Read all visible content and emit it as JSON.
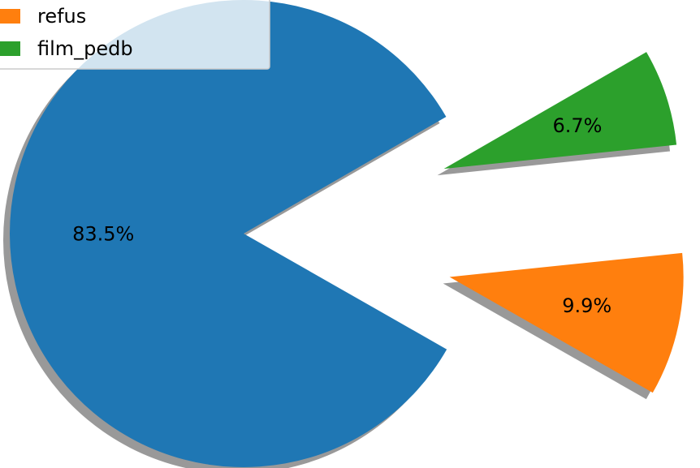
{
  "chart_data": {
    "type": "pie",
    "slices": [
      {
        "label": "",
        "value": 83.5,
        "pct_text": "83.5%",
        "color": "#1f77b4"
      },
      {
        "label": "refus",
        "value": 9.9,
        "pct_text": "9.9%",
        "color": "#ff7f0e"
      },
      {
        "label": "film_pedb",
        "value": 6.7,
        "pct_text": "6.7%",
        "color": "#2ca02c"
      }
    ],
    "shadow": true,
    "exploded": [
      "refus",
      "film_pedb"
    ],
    "legend": {
      "placement": "top-left",
      "entries": [
        {
          "label": "refus",
          "color": "#ff7f0e"
        },
        {
          "label": "film_pedb",
          "color": "#2ca02c"
        }
      ]
    }
  }
}
